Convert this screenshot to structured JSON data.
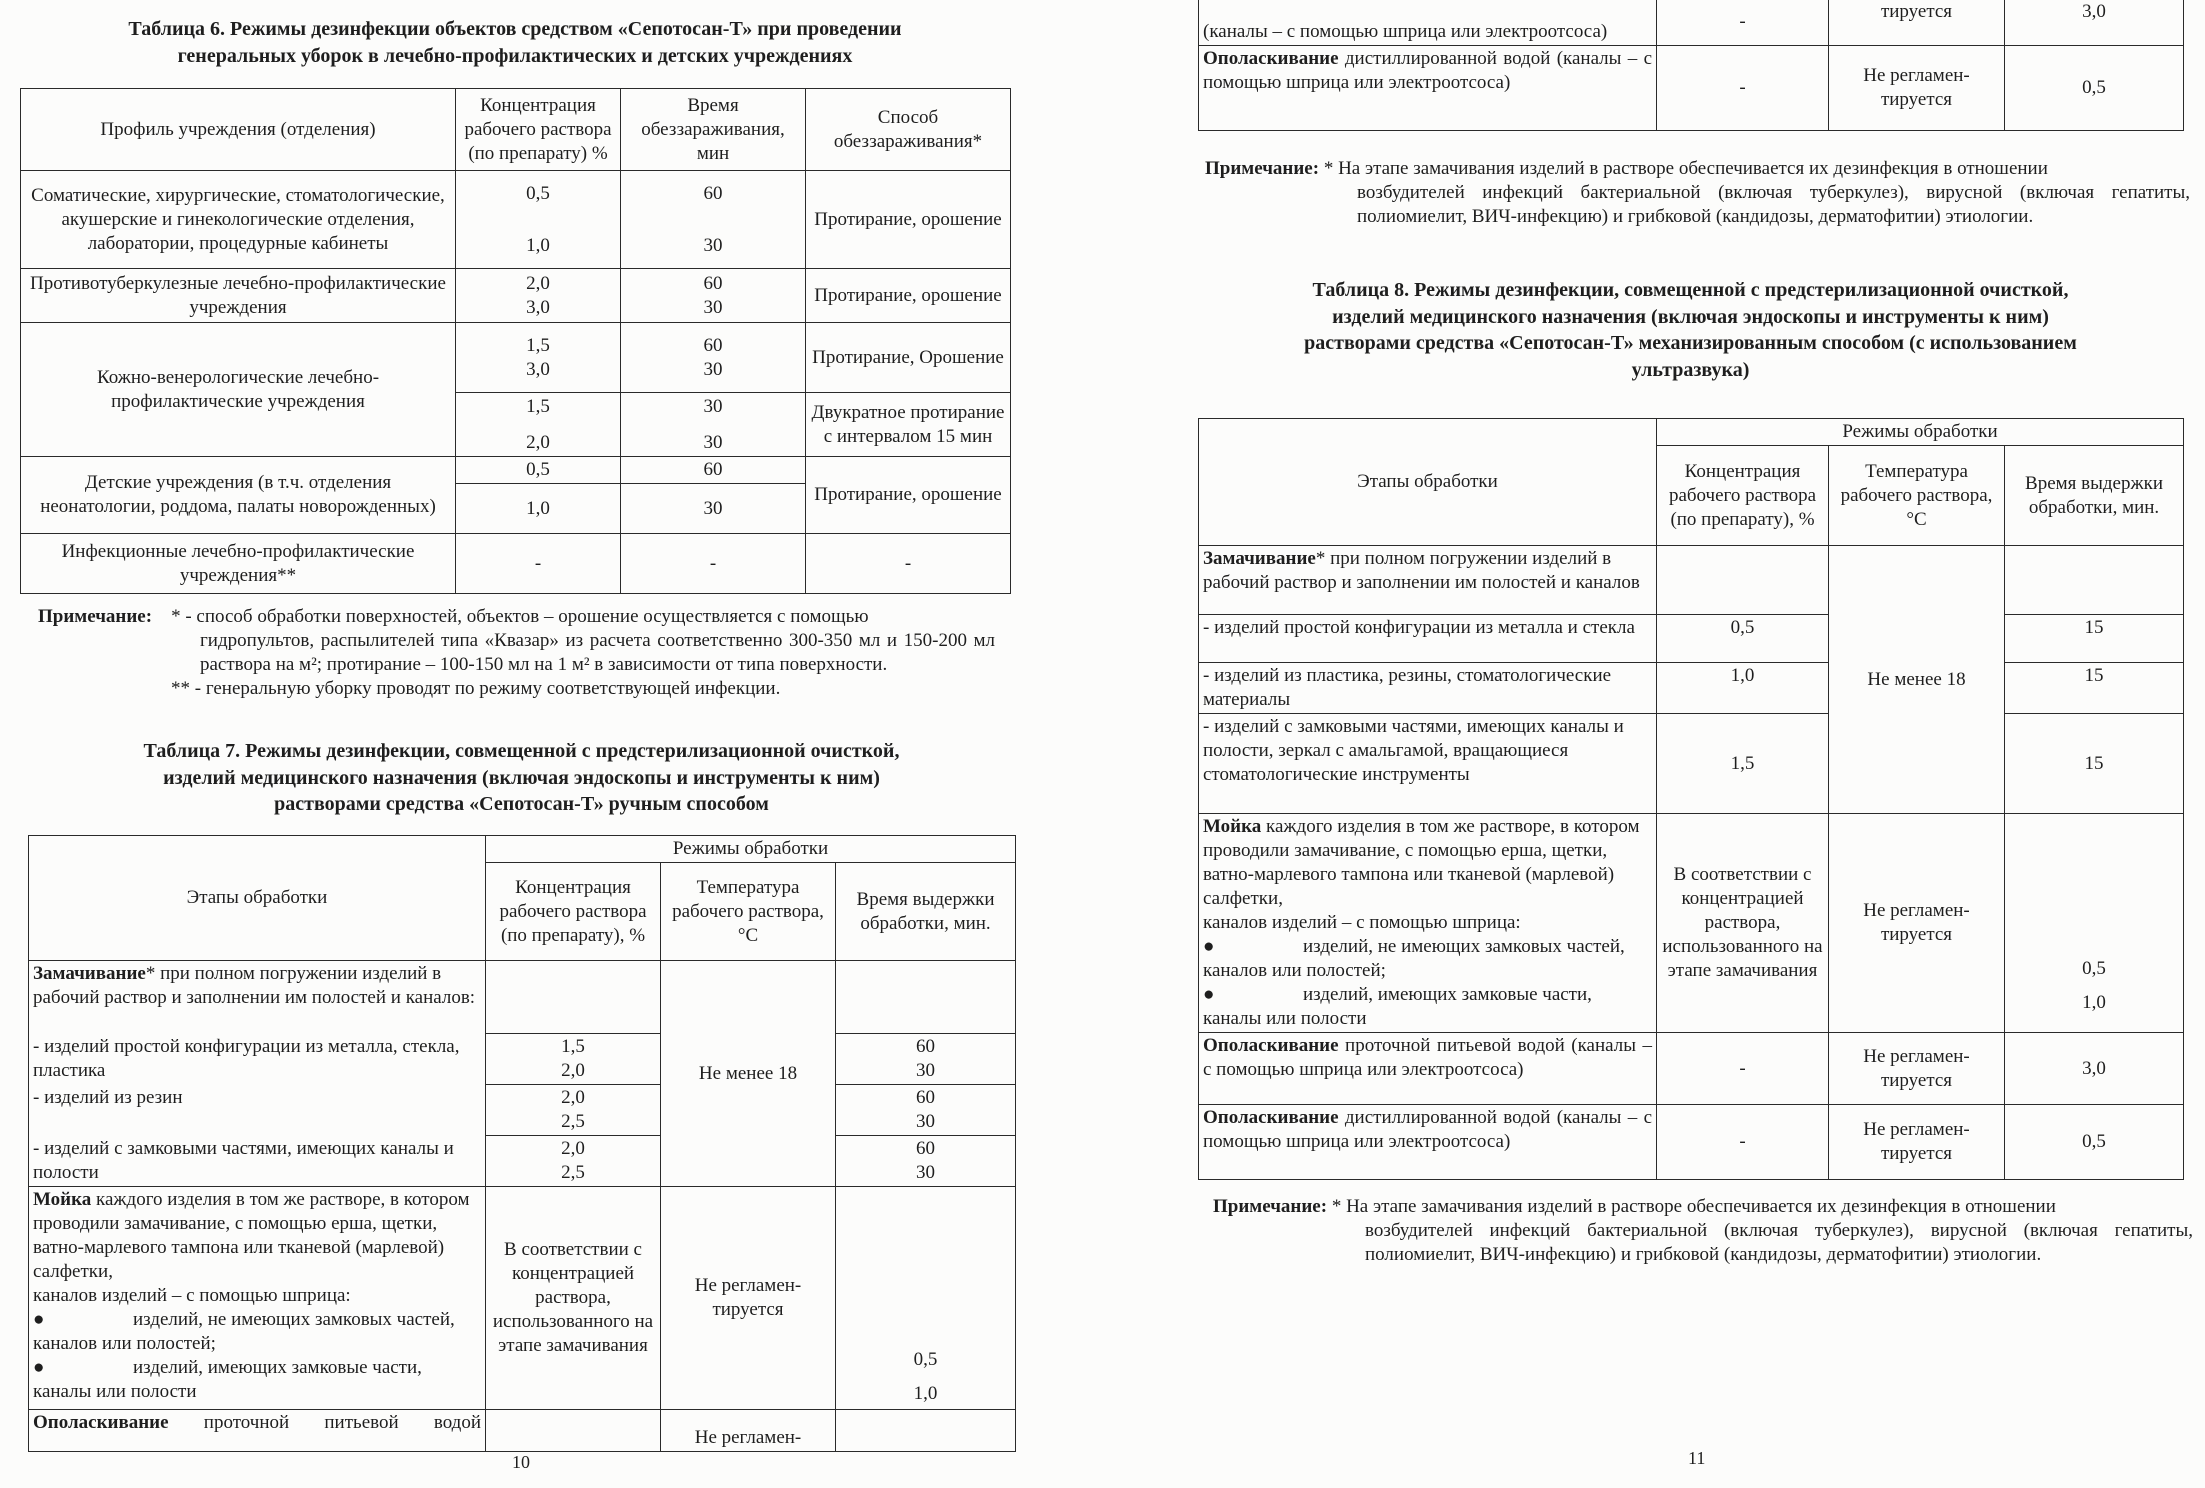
{
  "page_left": {
    "page_number": "10",
    "table6": {
      "title": "Таблица 6. Режимы дезинфекции объектов средством «Сепотосан-Т» при проведении\nгенеральных уборок в лечебно-профилактических и детских учреждениях",
      "headers": [
        "Профиль учреждения (отделения)",
        "Концентрация рабочего раствора (по препарату) %",
        "Время обеззараживания, мин",
        "Способ обеззараживания*"
      ],
      "rows": [
        {
          "profile": "Соматические, хирургические, стоматологические, акушерские и гинекологические отделения, лаборатории, процедурные кабинеты",
          "concentration": [
            "0,5",
            "1,0"
          ],
          "time": [
            "60",
            "30"
          ],
          "method": "Протирание, орошение"
        },
        {
          "profile": "Противотуберкулезные лечебно-профилактические учреждения",
          "concentration": [
            "2,0",
            "3,0"
          ],
          "time": [
            "60",
            "30"
          ],
          "method": "Протирание, орошение"
        },
        {
          "profile": "Кожно-венерологические лечебно-профилактические учреждения",
          "sub": [
            {
              "concentration": [
                "1,5",
                "3,0"
              ],
              "time": [
                "60",
                "30"
              ],
              "method": "Протирание, Орошение"
            },
            {
              "concentration": [
                "1,5",
                "2,0"
              ],
              "time": [
                "30",
                "30"
              ],
              "method": "Двукратное протирание с интервалом 15 мин"
            }
          ]
        },
        {
          "profile": "Детские учреждения (в т.ч. отделения неонатологии, роддома, палаты новорожденных)",
          "sub": [
            {
              "concentration": "0,5",
              "time": "60"
            },
            {
              "concentration": "1,0",
              "time": "30"
            }
          ],
          "method": "Протирание, орошение"
        },
        {
          "profile": "Инфекционные лечебно-профилактические учреждения**",
          "concentration": "-",
          "time": "-",
          "method": "-"
        }
      ],
      "note": {
        "label": "Примечание:",
        "item1_first": "* - способ обработки поверхностей, объектов – орошение осуществляется с помощью",
        "item1_rest": "гидропультов, распылителей типа «Квазар» из расчета соответственно 300-350 мл и 150-200 мл раствора на м²; протирание – 100-150 мл на 1 м² в зависимости от типа поверхности.",
        "item2": "** - генеральную уборку проводят по режиму соответствующей инфекции."
      }
    },
    "table7": {
      "title": "Таблица 7. Режимы дезинфекции, совмещенной с предстерилизационной очисткой,\nизделий медицинского назначения (включая эндоскопы и инструменты к ним)\nрастворами средства «Сепотосан-Т» ручным способом",
      "header_stage": "Этапы обработки",
      "header_group": "Режимы обработки",
      "headers": [
        "Концентрация рабочего раствора (по препарату), %",
        "Температура рабочего раствора, °С",
        "Время выдержки обработки, мин."
      ],
      "soak": {
        "bold": "Замачивание",
        "text": "* при полном погружении изделий в рабочий раствор и заполнении им полостей и каналов:",
        "temperature": "Не менее 18",
        "items": [
          {
            "label": "- изделий простой конфигурации из металла, стекла, пластика",
            "concentration": [
              "1,5",
              "2,0"
            ],
            "time": [
              "60",
              "30"
            ]
          },
          {
            "label": "- изделий из резин",
            "concentration": [
              "2,0",
              "2,5"
            ],
            "time": [
              "60",
              "30"
            ]
          },
          {
            "label": "- изделий с замковыми частями, имеющих каналы и полости",
            "concentration": [
              "2,0",
              "2,5"
            ],
            "time": [
              "60",
              "30"
            ]
          }
        ]
      },
      "wash": {
        "bold": "Мойка",
        "text": " каждого изделия в том же растворе, в котором проводили замачивание, с помощью ерша, щетки, ватно-марлевого тампона или тканевой (марлевой) салфетки,",
        "channels": "каналов изделий – с помощью шприца:",
        "bullet1": "изделий, не имеющих замковых частей,",
        "bullet1_cont": "каналов или полостей;",
        "bullet2": "изделий, имеющих замковые части,",
        "bullet2_cont": "каналы или полости",
        "concentration": "В соответствии с концентрацией раствора, использованного на этапе замачивания",
        "temperature": "Не регламен-тируется",
        "time": [
          "0,5",
          "1,0"
        ]
      },
      "rinse1": {
        "bold": "Ополаскивание",
        "text": " проточной питьевой водой",
        "temperature": "Не регламен-"
      }
    }
  },
  "page_right": {
    "page_number": "11",
    "table7_cont": {
      "rinse1": {
        "text": "(каналы – с помощью шприца или электроотсоса)",
        "concentration": "-",
        "temperature": "тируется",
        "time": "3,0"
      },
      "rinse2": {
        "bold": "Ополаскивание",
        "text": " дистиллированной водой (каналы – с помощью шприца или электроотсоса)",
        "concentration": "-",
        "temperature": "Не регламен-тируется",
        "time": "0,5"
      },
      "note": {
        "label": "Примечание:",
        "first": " * На этапе замачивания изделий в растворе обеспечивается их дезинфекция в отношении",
        "rest": "возбудителей инфекций бактериальной (включая туберкулез), вирусной (включая гепатиты, полиомиелит, ВИЧ-инфекцию) и грибковой (кандидозы, дерматофитии) этиологии."
      }
    },
    "table8": {
      "title": "Таблица 8. Режимы дезинфекции, совмещенной с предстерилизационной очисткой,\nизделий медицинского назначения (включая эндоскопы и инструменты к ним)\nрастворами средства «Сепотосан-Т» механизированным способом (с использованием\nультразвука)",
      "header_stage": "Этапы обработки",
      "header_group": "Режимы обработки",
      "headers": [
        "Концентрация рабочего раствора (по препарату), %",
        "Температура рабочего раствора, °С",
        "Время выдержки обработки, мин."
      ],
      "soak": {
        "bold": "Замачивание",
        "text": "* при полном погружении изделий в рабочий раствор и заполнении им полостей и каналов",
        "temperature": "Не менее 18",
        "items": [
          {
            "label": "- изделий простой конфигурации из металла и стекла",
            "concentration": "0,5",
            "time": "15"
          },
          {
            "label": "- изделий из пластика, резины, стоматологические материалы",
            "concentration": "1,0",
            "time": "15"
          },
          {
            "label": "- изделий с замковыми частями, имеющих каналы и полости, зеркал с амальгамой, вращающиеся стоматологические инструменты",
            "concentration": "1,5",
            "time": "15"
          }
        ]
      },
      "wash": {
        "bold": "Мойка",
        "text": " каждого изделия в том же растворе, в котором проводили замачивание, с помощью ерша, щетки, ватно-марлевого тампона или тканевой (марлевой) салфетки,",
        "channels": "каналов изделий – с помощью шприца:",
        "bullet1": "изделий, не имеющих замковых частей,",
        "bullet1_cont": "каналов или полостей;",
        "bullet2": "изделий, имеющих замковые части,",
        "bullet2_cont": "каналы или полости",
        "concentration": "В соответствии с концентрацией раствора, использованного на этапе замачивания",
        "temperature": "Не регламен-тируется",
        "time": [
          "0,5",
          "1,0"
        ]
      },
      "rinse1": {
        "bold": "Ополаскивание",
        "text": " проточной питьевой водой (каналы – с помощью шприца или электроотсоса)",
        "concentration": "-",
        "temperature": "Не регламен-тируется",
        "time": "3,0"
      },
      "rinse2": {
        "bold": "Ополаскивание",
        "text": " дистиллированной водой (каналы – с помощью шприца или электроотсоса)",
        "concentration": "-",
        "temperature": "Не регламен-тируется",
        "time": "0,5"
      },
      "note": {
        "label": "Примечание:",
        "first": " * На этапе замачивания изделий в растворе обеспечивается их дезинфекция в отношении",
        "rest": "возбудителей инфекций бактериальной (включая туберкулез), вирусной (включая гепатиты, полиомиелит, ВИЧ-инфекцию) и грибковой (кандидозы, дерматофитии) этиологии."
      }
    }
  }
}
